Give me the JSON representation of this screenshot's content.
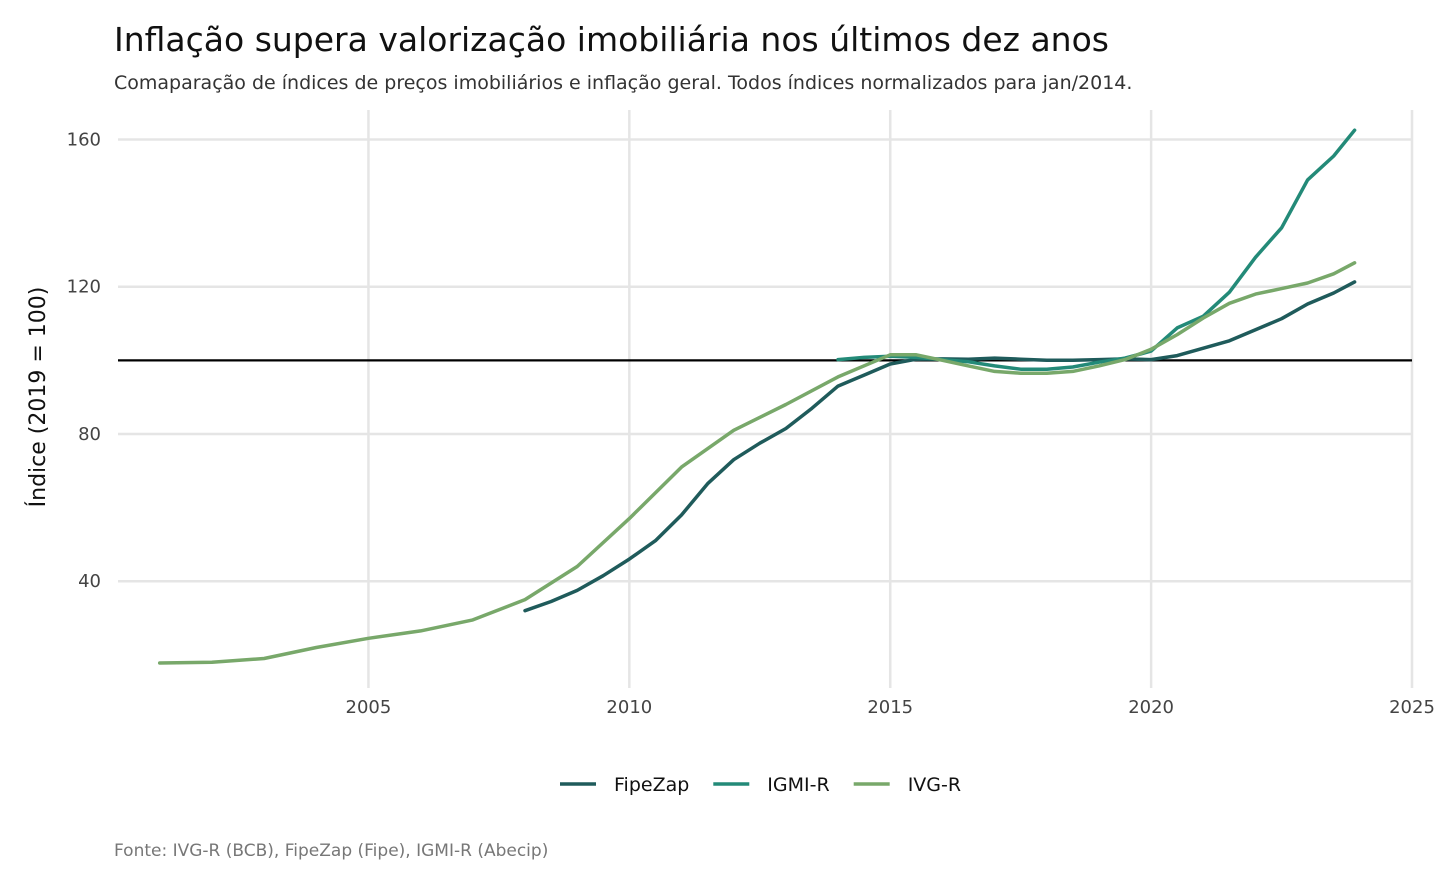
{
  "chart_data": {
    "type": "line",
    "title": "Inflação supera valorização imobiliária nos últimos dez anos",
    "subtitle": "Comaparação de índices de preços imobiliários e inflação geral. Todos índices normalizados para jan/2014.",
    "caption": "Fonte: IVG-R (BCB), FipeZap (Fipe), IGMI-R (Abecip)",
    "xlabel": "",
    "ylabel": "Índice (2019 = 100)",
    "xlim": [
      2000.2,
      2025.0
    ],
    "ylim": [
      11,
      168
    ],
    "x_ticks": [
      2005,
      2010,
      2015,
      2020,
      2025
    ],
    "y_ticks": [
      40,
      80,
      120,
      160
    ],
    "hline": 100,
    "grid": true,
    "legend_position": "bottom",
    "series": [
      {
        "name": "FipeZap",
        "color": "#1f5b5b",
        "points": [
          [
            2008.0,
            32.0
          ],
          [
            2008.5,
            34.5
          ],
          [
            2009.0,
            37.5
          ],
          [
            2009.5,
            41.5
          ],
          [
            2010.0,
            46.0
          ],
          [
            2010.5,
            51.0
          ],
          [
            2011.0,
            58.0
          ],
          [
            2011.5,
            66.5
          ],
          [
            2012.0,
            73.0
          ],
          [
            2012.5,
            77.5
          ],
          [
            2013.0,
            81.5
          ],
          [
            2013.5,
            87.0
          ],
          [
            2014.0,
            93.0
          ],
          [
            2014.5,
            96.0
          ],
          [
            2015.0,
            99.0
          ],
          [
            2015.5,
            100.3
          ],
          [
            2016.0,
            100.4
          ],
          [
            2016.5,
            100.3
          ],
          [
            2017.0,
            100.6
          ],
          [
            2017.5,
            100.3
          ],
          [
            2018.0,
            100.0
          ],
          [
            2018.5,
            100.0
          ],
          [
            2019.0,
            100.2
          ],
          [
            2019.5,
            100.4
          ],
          [
            2020.0,
            100.2
          ],
          [
            2020.5,
            101.3
          ],
          [
            2021.0,
            103.3
          ],
          [
            2021.5,
            105.3
          ],
          [
            2022.0,
            108.3
          ],
          [
            2022.5,
            111.3
          ],
          [
            2023.0,
            115.3
          ],
          [
            2023.5,
            118.3
          ],
          [
            2023.9,
            121.3
          ]
        ]
      },
      {
        "name": "IGMI-R",
        "color": "#238a78",
        "points": [
          [
            2014.0,
            100.2
          ],
          [
            2014.5,
            100.8
          ],
          [
            2015.0,
            101.1
          ],
          [
            2015.5,
            100.8
          ],
          [
            2016.0,
            100.2
          ],
          [
            2016.5,
            99.6
          ],
          [
            2017.0,
            98.5
          ],
          [
            2017.5,
            97.6
          ],
          [
            2018.0,
            97.6
          ],
          [
            2018.5,
            98.2
          ],
          [
            2019.0,
            99.5
          ],
          [
            2019.5,
            100.6
          ],
          [
            2020.0,
            102.5
          ],
          [
            2020.5,
            108.8
          ],
          [
            2021.0,
            112.0
          ],
          [
            2021.5,
            118.5
          ],
          [
            2022.0,
            128.0
          ],
          [
            2022.5,
            136.0
          ],
          [
            2023.0,
            149.0
          ],
          [
            2023.5,
            155.5
          ],
          [
            2023.9,
            162.5
          ]
        ]
      },
      {
        "name": "IVG-R",
        "color": "#78a86a",
        "points": [
          [
            2001.0,
            17.8
          ],
          [
            2002.0,
            18.0
          ],
          [
            2003.0,
            19.0
          ],
          [
            2004.0,
            22.0
          ],
          [
            2005.0,
            24.5
          ],
          [
            2006.0,
            26.5
          ],
          [
            2007.0,
            29.5
          ],
          [
            2008.0,
            35.0
          ],
          [
            2009.0,
            44.0
          ],
          [
            2010.0,
            57.0
          ],
          [
            2011.0,
            71.0
          ],
          [
            2012.0,
            81.0
          ],
          [
            2013.0,
            88.0
          ],
          [
            2014.0,
            95.5
          ],
          [
            2015.0,
            101.5
          ],
          [
            2015.5,
            101.5
          ],
          [
            2016.0,
            100.0
          ],
          [
            2016.5,
            98.5
          ],
          [
            2017.0,
            97.0
          ],
          [
            2017.5,
            96.5
          ],
          [
            2018.0,
            96.5
          ],
          [
            2018.5,
            97.0
          ],
          [
            2019.0,
            98.5
          ],
          [
            2019.5,
            100.2
          ],
          [
            2020.0,
            103.0
          ],
          [
            2020.5,
            107.0
          ],
          [
            2021.0,
            111.5
          ],
          [
            2021.5,
            115.5
          ],
          [
            2022.0,
            118.0
          ],
          [
            2022.5,
            119.5
          ],
          [
            2023.0,
            121.0
          ],
          [
            2023.5,
            123.5
          ],
          [
            2023.9,
            126.5
          ]
        ]
      }
    ]
  }
}
